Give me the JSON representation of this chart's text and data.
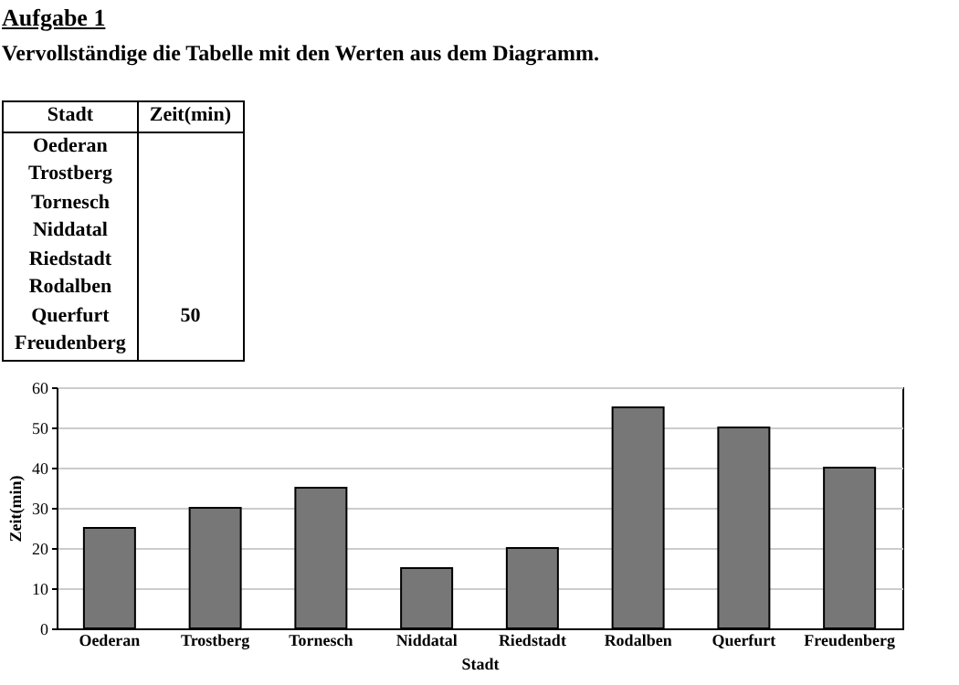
{
  "chart_data": {
    "type": "bar",
    "title": "Aufgabe 1",
    "subtitle": "Vervollständige die Tabelle mit den Werten aus dem Diagramm.",
    "xlabel": "Stadt",
    "ylabel": "Zeit(min)",
    "categories": [
      "Oederan",
      "Trostberg",
      "Tornesch",
      "Niddatal",
      "Riedstadt",
      "Rodalben",
      "Querfurt",
      "Freudenberg"
    ],
    "values": [
      25,
      30,
      35,
      15,
      20,
      55,
      50,
      40
    ],
    "annotations": [
      "50"
    ],
    "color": "#777777",
    "ylim": [
      0,
      60
    ],
    "yticks": [
      0,
      10,
      20,
      30,
      40,
      50,
      60
    ],
    "grid": "y"
  }
}
